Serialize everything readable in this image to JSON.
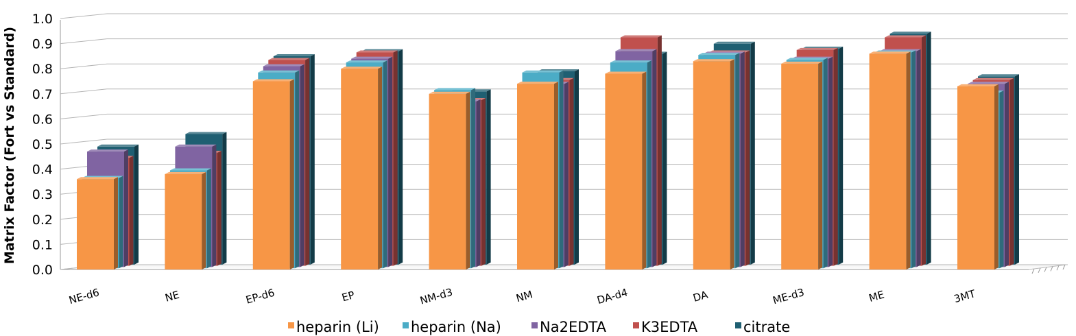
{
  "chart_data": {
    "type": "bar",
    "style": "3d-clustered",
    "title": "",
    "xlabel": "",
    "ylabel": "Matrix Factor (Fort vs Standard)",
    "ylim": [
      0,
      1.0
    ],
    "yticks": [
      "0.0",
      "0.1",
      "0.2",
      "0.3",
      "0.4",
      "0.5",
      "0.6",
      "0.7",
      "0.8",
      "0.9",
      "1.0"
    ],
    "grid": true,
    "legend_position": "bottom",
    "categories": [
      "NE-d6",
      "NE",
      "EP-d6",
      "EP",
      "NM-d3",
      "NM",
      "DA-d4",
      "DA",
      "ME-d3",
      "ME",
      "3MT"
    ],
    "series": [
      {
        "name": "heparin (Li)",
        "color": "#F79646",
        "values": [
          0.36,
          0.38,
          0.75,
          0.8,
          0.7,
          0.74,
          0.78,
          0.83,
          0.82,
          0.86,
          0.73
        ]
      },
      {
        "name": "heparin (Na)",
        "color": "#4BACC6",
        "values": [
          0.36,
          0.39,
          0.78,
          0.82,
          0.71,
          0.78,
          0.82,
          0.85,
          0.83,
          0.86,
          0.7
        ]
      },
      {
        "name": "Na2EDTA",
        "color": "#8064A2",
        "values": [
          0.46,
          0.48,
          0.8,
          0.83,
          0.66,
          0.73,
          0.86,
          0.85,
          0.83,
          0.86,
          0.73
        ]
      },
      {
        "name": "K3EDTA",
        "color": "#C0504D",
        "values": [
          0.43,
          0.45,
          0.82,
          0.85,
          0.66,
          0.74,
          0.91,
          0.85,
          0.86,
          0.91,
          0.74
        ]
      },
      {
        "name": "citrate",
        "color": "#1F5F72",
        "values": [
          0.47,
          0.52,
          0.83,
          0.85,
          0.69,
          0.77,
          0.84,
          0.88,
          0.86,
          0.92,
          0.75
        ]
      }
    ]
  }
}
